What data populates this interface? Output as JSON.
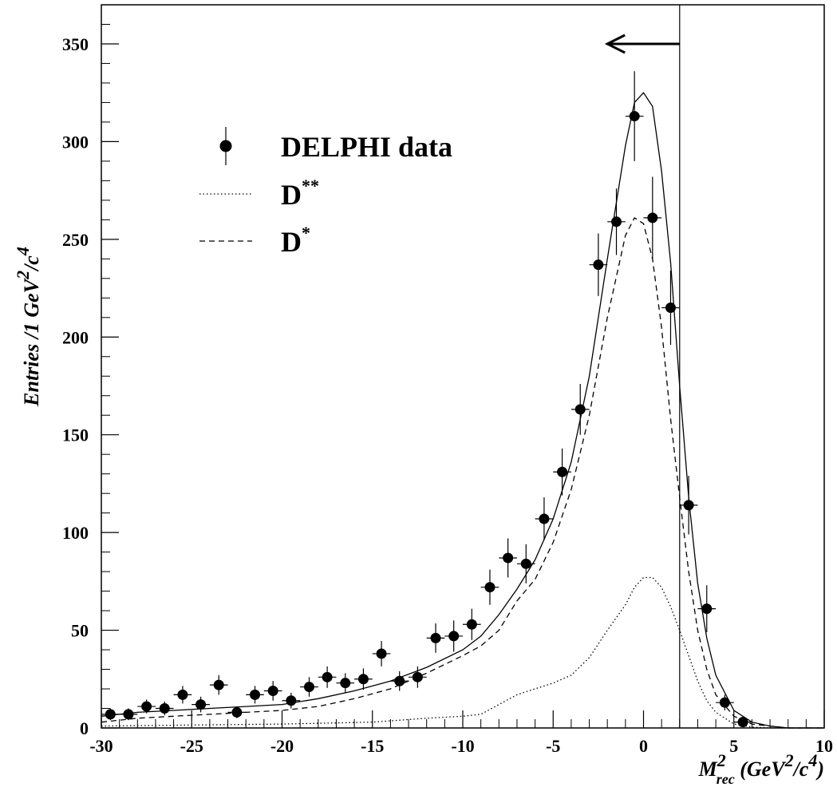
{
  "chart_data": {
    "type": "scatter",
    "title": "",
    "xlabel": {
      "base": "M",
      "sup": "2",
      "sub": "rec",
      "rest": " (GeV",
      "rest_sup": "2",
      "rest2": "/c",
      "rest2_sup": "4",
      "close": ")"
    },
    "ylabel": {
      "pre": "Entries /1 GeV",
      "sup1": "2",
      "mid": "/c",
      "sup2": "4"
    },
    "xlim": [
      -30,
      10
    ],
    "ylim": [
      0,
      370
    ],
    "x_ticks": [
      -30,
      -25,
      -20,
      -15,
      -10,
      -5,
      0,
      5,
      10
    ],
    "y_ticks": [
      0,
      50,
      100,
      150,
      200,
      250,
      300,
      350
    ],
    "cut_line_x": 2,
    "cut_arrow": {
      "from_x": 2,
      "to_x": -2,
      "y": 350
    },
    "legend": {
      "position": "top-left",
      "entries": [
        {
          "key": "data",
          "label": "DELPHI data"
        },
        {
          "key": "dstarstar",
          "label": "D",
          "sup": "**"
        },
        {
          "key": "dstar",
          "label": "D",
          "sup": "*"
        }
      ]
    },
    "series": [
      {
        "name": "DELPHI data",
        "style": "points-with-errors",
        "x": [
          -29.5,
          -28.5,
          -27.5,
          -26.5,
          -25.5,
          -24.5,
          -23.5,
          -22.5,
          -21.5,
          -20.5,
          -19.5,
          -18.5,
          -17.5,
          -16.5,
          -15.5,
          -14.5,
          -13.5,
          -12.5,
          -11.5,
          -10.5,
          -9.5,
          -8.5,
          -7.5,
          -6.5,
          -5.5,
          -4.5,
          -3.5,
          -2.5,
          -1.5,
          -0.5,
          0.5,
          1.5,
          2.5,
          3.5,
          4.5,
          5.5
        ],
        "y": [
          7,
          7,
          11,
          10,
          17,
          12,
          22,
          8,
          17,
          19,
          14,
          21,
          26,
          23,
          25,
          38,
          24,
          26,
          46,
          47,
          53,
          72,
          87,
          84,
          107,
          131,
          163,
          237,
          259,
          313,
          261,
          215,
          114,
          61,
          13,
          3
        ],
        "yerr": [
          3,
          3,
          3.5,
          3.5,
          4.5,
          4,
          5,
          3,
          4.5,
          5,
          4,
          5,
          5.5,
          5,
          5.5,
          6.5,
          5,
          5.5,
          7.5,
          8,
          8,
          9,
          10,
          10,
          11,
          12,
          13,
          16,
          17,
          23,
          21,
          19,
          15,
          12,
          4,
          2
        ]
      },
      {
        "name": "",
        "style": "solid",
        "x": [
          -30,
          -28,
          -26,
          -24,
          -22,
          -20,
          -18,
          -16,
          -14,
          -12,
          -10,
          -9,
          -8,
          -7,
          -6,
          -5,
          -4,
          -3,
          -2,
          -1,
          -0.5,
          0,
          0.5,
          1,
          1.5,
          2,
          2.5,
          3,
          3.5,
          4,
          5,
          6,
          7,
          8,
          10
        ],
        "y": [
          6,
          8,
          9,
          10,
          11,
          12,
          15,
          19,
          24,
          31,
          40,
          47,
          58,
          71,
          86,
          107,
          136,
          180,
          240,
          298,
          320,
          325,
          318,
          285,
          238,
          175,
          118,
          74,
          46,
          27,
          9,
          3,
          1,
          0,
          0
        ]
      },
      {
        "name": "D*",
        "style": "dashed",
        "x": [
          -30,
          -28,
          -26,
          -24,
          -22,
          -20,
          -18,
          -16,
          -14,
          -12,
          -10,
          -9,
          -8,
          -7,
          -6,
          -5,
          -4,
          -3,
          -2,
          -1,
          -0.5,
          0,
          0.5,
          1,
          1.5,
          2,
          2.5,
          3,
          3.5,
          4,
          5,
          6,
          7,
          8,
          10
        ],
        "y": [
          3,
          5,
          6,
          7,
          8,
          9,
          11,
          15,
          20,
          28,
          37,
          42,
          50,
          65,
          76,
          95,
          122,
          160,
          210,
          252,
          261,
          258,
          240,
          205,
          158,
          118,
          80,
          50,
          30,
          17,
          6,
          2,
          1,
          0,
          0
        ]
      },
      {
        "name": "D**",
        "style": "dotted",
        "x": [
          -30,
          -25,
          -20,
          -15,
          -12,
          -10,
          -9,
          -8,
          -7,
          -6,
          -5,
          -4,
          -3,
          -2,
          -1,
          -0.5,
          0,
          0.5,
          1,
          1.5,
          2,
          2.5,
          3,
          3.5,
          4,
          5,
          6,
          7,
          10
        ],
        "y": [
          1,
          1.5,
          2,
          3,
          5,
          6,
          7,
          12,
          17,
          20,
          23,
          27,
          36,
          50,
          63,
          72,
          77,
          77,
          72,
          62,
          50,
          37,
          24,
          14,
          8,
          2,
          0.5,
          0,
          0
        ]
      }
    ]
  }
}
